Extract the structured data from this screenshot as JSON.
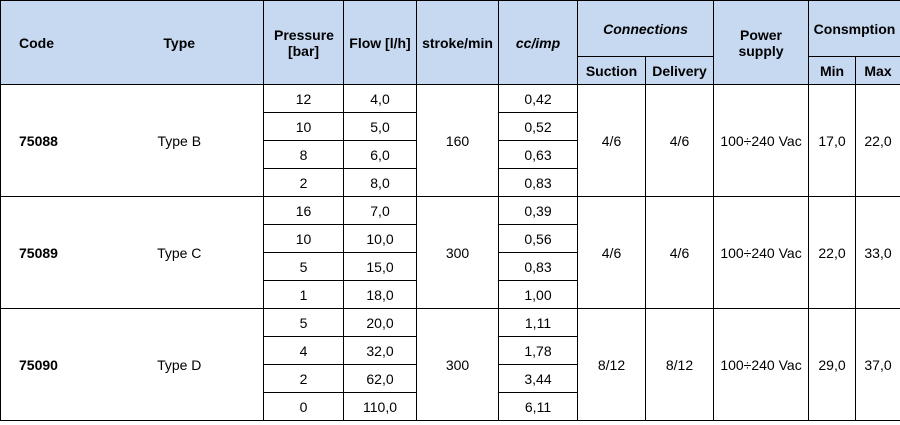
{
  "header": {
    "code": "Code",
    "type": "Type",
    "pressure": "Pressure [bar]",
    "flow": "Flow [l/h]",
    "strokes": "stroke/min",
    "cc": "cc/imp",
    "connections": "Connections",
    "suction": "Suction",
    "delivery": "Delivery",
    "power": "Power supply",
    "consumption": "Consmption",
    "min": "Min",
    "max": "Max"
  },
  "rows": [
    {
      "code": "75088",
      "type": "Type B",
      "strokes": "160",
      "suction": "4/6",
      "delivery": "4/6",
      "power": "100÷240 Vac",
      "min": "17,0",
      "max": "22,0",
      "points": [
        {
          "pressure": "12",
          "flow": "4,0",
          "cc": "0,42"
        },
        {
          "pressure": "10",
          "flow": "5,0",
          "cc": "0,52"
        },
        {
          "pressure": "8",
          "flow": "6,0",
          "cc": "0,63"
        },
        {
          "pressure": "2",
          "flow": "8,0",
          "cc": "0,83"
        }
      ]
    },
    {
      "code": "75089",
      "type": "Type C",
      "strokes": "300",
      "suction": "4/6",
      "delivery": "4/6",
      "power": "100÷240 Vac",
      "min": "22,0",
      "max": "33,0",
      "points": [
        {
          "pressure": "16",
          "flow": "7,0",
          "cc": "0,39"
        },
        {
          "pressure": "10",
          "flow": "10,0",
          "cc": "0,56"
        },
        {
          "pressure": "5",
          "flow": "15,0",
          "cc": "0,83"
        },
        {
          "pressure": "1",
          "flow": "18,0",
          "cc": "1,00"
        }
      ]
    },
    {
      "code": "75090",
      "type": "Type D",
      "strokes": "300",
      "suction": "8/12",
      "delivery": "8/12",
      "power": "100÷240 Vac",
      "min": "29,0",
      "max": "37,0",
      "points": [
        {
          "pressure": "5",
          "flow": "20,0",
          "cc": "1,11"
        },
        {
          "pressure": "4",
          "flow": "32,0",
          "cc": "1,78"
        },
        {
          "pressure": "2",
          "flow": "62,0",
          "cc": "3,44"
        },
        {
          "pressure": "0",
          "flow": "110,0",
          "cc": "6,11"
        }
      ]
    }
  ]
}
